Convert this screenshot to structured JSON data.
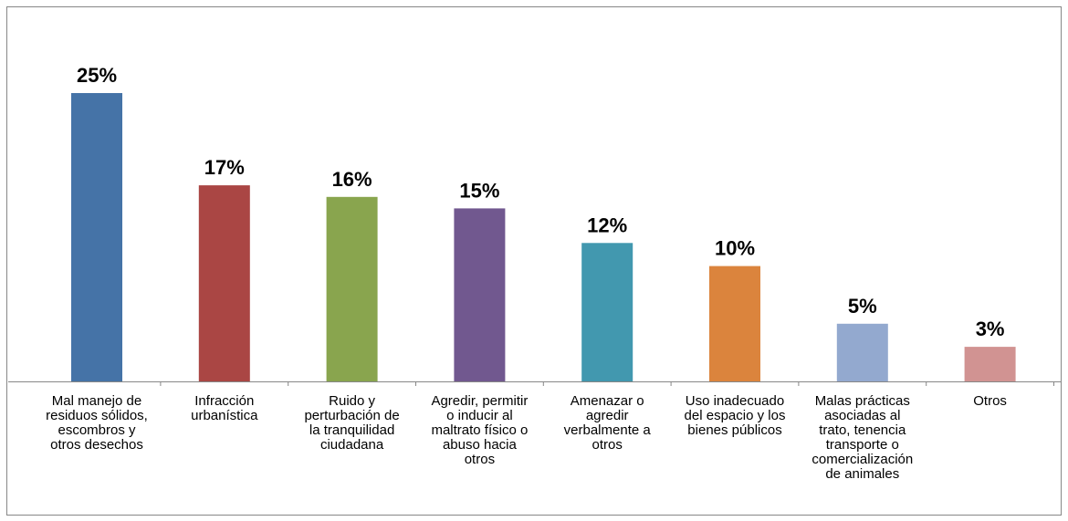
{
  "chart_data": {
    "type": "bar",
    "categories": [
      [
        "Mal manejo de",
        "residuos sólidos,",
        "escombros y",
        "otros desechos"
      ],
      [
        "Infracción",
        "urbanística"
      ],
      [
        "Ruido y",
        "perturbación de",
        "la tranquilidad",
        "ciudadana"
      ],
      [
        "Agredir, permitir",
        "o inducir al",
        "maltrato físico o",
        "abuso hacia",
        "otros"
      ],
      [
        "Amenazar o",
        "agredir",
        "verbalmente a",
        "otros"
      ],
      [
        "Uso inadecuado",
        "del espacio y los",
        "bienes públicos"
      ],
      [
        "Malas prácticas",
        "asociadas al",
        "trato, tenencia",
        "transporte o",
        "comercialización",
        "de animales"
      ],
      [
        "Otros"
      ]
    ],
    "values": [
      25,
      17,
      16,
      15,
      12,
      10,
      5,
      3
    ],
    "data_labels": [
      "25%",
      "17%",
      "16%",
      "15%",
      "12%",
      "10%",
      "5%",
      "3%"
    ],
    "colors": [
      "#4573A7",
      "#AA4644",
      "#89A54E",
      "#71588F",
      "#4298AF",
      "#DB843D",
      "#93A9CF",
      "#D19392"
    ],
    "axis_color": "#878787",
    "title": "",
    "xlabel": "",
    "ylabel": "",
    "ylim": [
      0,
      25
    ],
    "grid": false,
    "legend": "none"
  }
}
